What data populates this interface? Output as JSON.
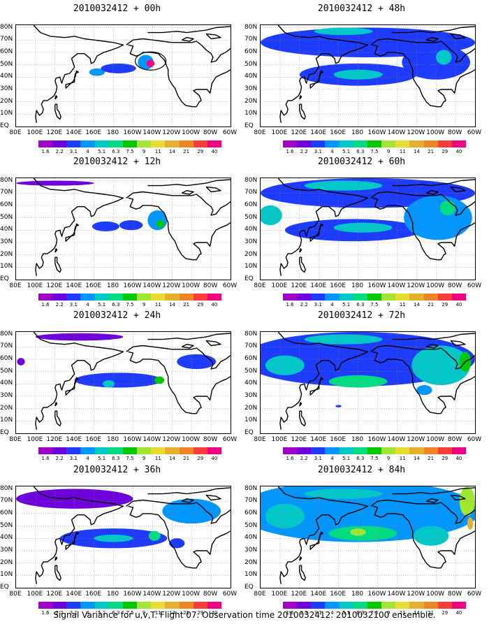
{
  "panels": [
    {
      "title": "2010032412 + 00h",
      "blobs": [
        {
          "lon": 163,
          "lat": 44,
          "rx": 8,
          "ry": 3,
          "level": 3
        },
        {
          "lon": 185,
          "lat": 47,
          "rx": 18,
          "ry": 4,
          "level": 2
        },
        {
          "lon": 213,
          "lat": 52,
          "rx": 8,
          "ry": 6,
          "level": 3
        },
        {
          "lon": 218,
          "lat": 51,
          "rx": 4,
          "ry": 3,
          "level": 12
        }
      ]
    },
    {
      "title": "2010032412 + 12h",
      "blobs": [
        {
          "lon": 120,
          "lat": 78,
          "rx": 40,
          "ry": 2,
          "level": 1
        },
        {
          "lon": 172,
          "lat": 43,
          "rx": 14,
          "ry": 4,
          "level": 2
        },
        {
          "lon": 198,
          "lat": 44,
          "rx": 12,
          "ry": 4,
          "level": 2
        },
        {
          "lon": 225,
          "lat": 48,
          "rx": 10,
          "ry": 8,
          "level": 3
        },
        {
          "lon": 228,
          "lat": 45,
          "rx": 4,
          "ry": 3,
          "level": 6
        }
      ]
    },
    {
      "title": "2010032412 + 24h",
      "blobs": [
        {
          "lon": 145,
          "lat": 78,
          "rx": 45,
          "ry": 3,
          "level": 1
        },
        {
          "lon": 85,
          "lat": 58,
          "rx": 4,
          "ry": 3,
          "level": 1
        },
        {
          "lon": 185,
          "lat": 43,
          "rx": 45,
          "ry": 6,
          "level": 2
        },
        {
          "lon": 175,
          "lat": 40,
          "rx": 6,
          "ry": 3,
          "level": 4
        },
        {
          "lon": 227,
          "lat": 43,
          "rx": 5,
          "ry": 3,
          "level": 6
        },
        {
          "lon": 265,
          "lat": 58,
          "rx": 20,
          "ry": 6,
          "level": 2
        }
      ]
    },
    {
      "title": "2010032412 + 36h",
      "blobs": [
        {
          "lon": 140,
          "lat": 72,
          "rx": 60,
          "ry": 8,
          "level": 1
        },
        {
          "lon": 260,
          "lat": 62,
          "rx": 30,
          "ry": 10,
          "level": 3
        },
        {
          "lon": 180,
          "lat": 40,
          "rx": 55,
          "ry": 8,
          "level": 2
        },
        {
          "lon": 180,
          "lat": 40,
          "rx": 20,
          "ry": 3,
          "level": 4
        },
        {
          "lon": 222,
          "lat": 42,
          "rx": 6,
          "ry": 4,
          "level": 5
        },
        {
          "lon": 245,
          "lat": 36,
          "rx": 8,
          "ry": 4,
          "level": 2
        }
      ]
    },
    {
      "title": "2010032412 + 48h",
      "blobs": [
        {
          "lon": 190,
          "lat": 68,
          "rx": 110,
          "ry": 12,
          "level": 2
        },
        {
          "lon": 165,
          "lat": 77,
          "rx": 30,
          "ry": 3,
          "level": 4
        },
        {
          "lon": 180,
          "lat": 42,
          "rx": 60,
          "ry": 9,
          "level": 2
        },
        {
          "lon": 180,
          "lat": 42,
          "rx": 25,
          "ry": 4,
          "level": 4
        },
        {
          "lon": 260,
          "lat": 52,
          "rx": 35,
          "ry": 14,
          "level": 2
        },
        {
          "lon": 268,
          "lat": 56,
          "rx": 8,
          "ry": 6,
          "level": 4
        }
      ]
    },
    {
      "title": "2010032412 + 60h",
      "blobs": [
        {
          "lon": 190,
          "lat": 70,
          "rx": 110,
          "ry": 12,
          "level": 2
        },
        {
          "lon": 165,
          "lat": 76,
          "rx": 40,
          "ry": 4,
          "level": 4
        },
        {
          "lon": 90,
          "lat": 52,
          "rx": 12,
          "ry": 8,
          "level": 4
        },
        {
          "lon": 175,
          "lat": 40,
          "rx": 70,
          "ry": 9,
          "level": 2
        },
        {
          "lon": 185,
          "lat": 42,
          "rx": 30,
          "ry": 4,
          "level": 4
        },
        {
          "lon": 262,
          "lat": 50,
          "rx": 35,
          "ry": 18,
          "level": 3
        },
        {
          "lon": 272,
          "lat": 58,
          "rx": 8,
          "ry": 6,
          "level": 5
        }
      ]
    },
    {
      "title": "2010032412 + 72h",
      "blobs": [
        {
          "lon": 180,
          "lat": 60,
          "rx": 120,
          "ry": 22,
          "level": 2
        },
        {
          "lon": 165,
          "lat": 76,
          "rx": 40,
          "ry": 4,
          "level": 4
        },
        {
          "lon": 105,
          "lat": 55,
          "rx": 20,
          "ry": 8,
          "level": 4
        },
        {
          "lon": 180,
          "lat": 42,
          "rx": 30,
          "ry": 5,
          "level": 5
        },
        {
          "lon": 265,
          "lat": 55,
          "rx": 30,
          "ry": 16,
          "level": 4
        },
        {
          "lon": 290,
          "lat": 58,
          "rx": 6,
          "ry": 8,
          "level": 6
        },
        {
          "lon": 248,
          "lat": 35,
          "rx": 8,
          "ry": 4,
          "level": 3
        },
        {
          "lon": 160,
          "lat": 22,
          "rx": 3,
          "ry": 1,
          "level": 2
        }
      ]
    },
    {
      "title": "2010032412 + 84h",
      "blobs": [
        {
          "lon": 180,
          "lat": 62,
          "rx": 125,
          "ry": 25,
          "level": 3
        },
        {
          "lon": 165,
          "lat": 76,
          "rx": 40,
          "ry": 4,
          "level": 4
        },
        {
          "lon": 105,
          "lat": 58,
          "rx": 20,
          "ry": 10,
          "level": 4
        },
        {
          "lon": 185,
          "lat": 44,
          "rx": 35,
          "ry": 6,
          "level": 5
        },
        {
          "lon": 180,
          "lat": 45,
          "rx": 8,
          "ry": 3,
          "level": 7
        },
        {
          "lon": 255,
          "lat": 42,
          "rx": 18,
          "ry": 8,
          "level": 4
        },
        {
          "lon": 292,
          "lat": 70,
          "rx": 8,
          "ry": 12,
          "level": 7
        },
        {
          "lon": 295,
          "lat": 52,
          "rx": 3,
          "ry": 5,
          "level": 9
        }
      ]
    }
  ],
  "lat_labels": [
    "80N",
    "70N",
    "60N",
    "50N",
    "40N",
    "30N",
    "20N",
    "10N",
    "EQ"
  ],
  "lon_labels": [
    "80E",
    "100E",
    "120E",
    "140E",
    "160E",
    "180",
    "160W",
    "140W",
    "120W",
    "100W",
    "80W",
    "60W"
  ],
  "colorbar": {
    "labels": [
      "1.6",
      "2.2",
      "3.1",
      "4",
      "5.1",
      "6.3",
      "7.5",
      "9",
      "11",
      "14",
      "21",
      "29",
      "40"
    ],
    "colors": [
      "#a000c8",
      "#6e00dc",
      "#1e3cff",
      "#0096ff",
      "#00c8c8",
      "#00dc82",
      "#00c800",
      "#a0e632",
      "#e6dc32",
      "#e6af2d",
      "#f08228",
      "#fa3c3c",
      "#f00082"
    ]
  },
  "caption": "Signal Variance for u,v,T. Flight 07. Observation time 2010032412. 2010032100 ensemble."
}
